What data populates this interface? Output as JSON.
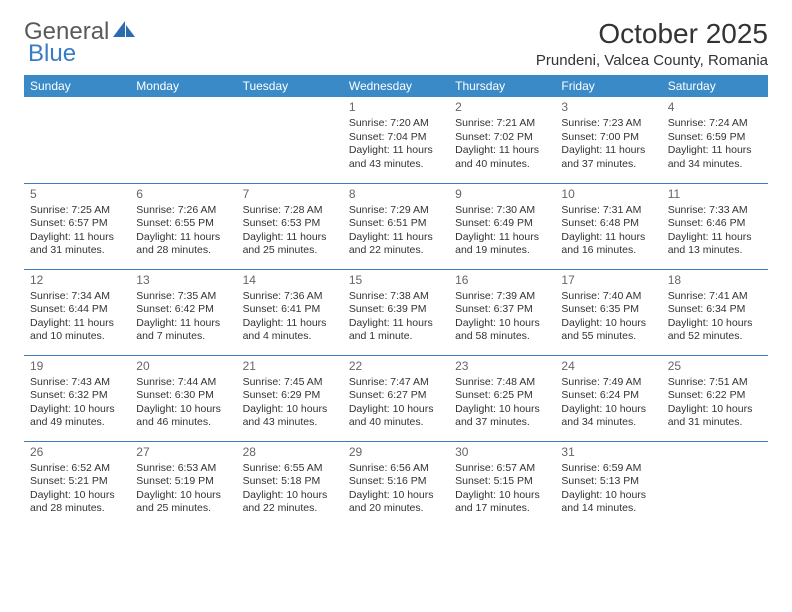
{
  "brand": {
    "part1": "General",
    "part2": "Blue"
  },
  "title": "October 2025",
  "location": "Prundeni, Valcea County, Romania",
  "weekdays": [
    "Sunday",
    "Monday",
    "Tuesday",
    "Wednesday",
    "Thursday",
    "Friday",
    "Saturday"
  ],
  "colors": {
    "header_bg": "#3a8ac8",
    "header_text": "#ffffff",
    "border": "#3a7cc4",
    "brand_gray": "#5a5a5a",
    "brand_blue": "#3a7cc4",
    "text": "#333333",
    "page_bg": "#ffffff"
  },
  "weeks": [
    [
      {
        "n": "",
        "sr": "",
        "ss": "",
        "dl": ""
      },
      {
        "n": "",
        "sr": "",
        "ss": "",
        "dl": ""
      },
      {
        "n": "",
        "sr": "",
        "ss": "",
        "dl": ""
      },
      {
        "n": "1",
        "sr": "Sunrise: 7:20 AM",
        "ss": "Sunset: 7:04 PM",
        "dl": "Daylight: 11 hours and 43 minutes."
      },
      {
        "n": "2",
        "sr": "Sunrise: 7:21 AM",
        "ss": "Sunset: 7:02 PM",
        "dl": "Daylight: 11 hours and 40 minutes."
      },
      {
        "n": "3",
        "sr": "Sunrise: 7:23 AM",
        "ss": "Sunset: 7:00 PM",
        "dl": "Daylight: 11 hours and 37 minutes."
      },
      {
        "n": "4",
        "sr": "Sunrise: 7:24 AM",
        "ss": "Sunset: 6:59 PM",
        "dl": "Daylight: 11 hours and 34 minutes."
      }
    ],
    [
      {
        "n": "5",
        "sr": "Sunrise: 7:25 AM",
        "ss": "Sunset: 6:57 PM",
        "dl": "Daylight: 11 hours and 31 minutes."
      },
      {
        "n": "6",
        "sr": "Sunrise: 7:26 AM",
        "ss": "Sunset: 6:55 PM",
        "dl": "Daylight: 11 hours and 28 minutes."
      },
      {
        "n": "7",
        "sr": "Sunrise: 7:28 AM",
        "ss": "Sunset: 6:53 PM",
        "dl": "Daylight: 11 hours and 25 minutes."
      },
      {
        "n": "8",
        "sr": "Sunrise: 7:29 AM",
        "ss": "Sunset: 6:51 PM",
        "dl": "Daylight: 11 hours and 22 minutes."
      },
      {
        "n": "9",
        "sr": "Sunrise: 7:30 AM",
        "ss": "Sunset: 6:49 PM",
        "dl": "Daylight: 11 hours and 19 minutes."
      },
      {
        "n": "10",
        "sr": "Sunrise: 7:31 AM",
        "ss": "Sunset: 6:48 PM",
        "dl": "Daylight: 11 hours and 16 minutes."
      },
      {
        "n": "11",
        "sr": "Sunrise: 7:33 AM",
        "ss": "Sunset: 6:46 PM",
        "dl": "Daylight: 11 hours and 13 minutes."
      }
    ],
    [
      {
        "n": "12",
        "sr": "Sunrise: 7:34 AM",
        "ss": "Sunset: 6:44 PM",
        "dl": "Daylight: 11 hours and 10 minutes."
      },
      {
        "n": "13",
        "sr": "Sunrise: 7:35 AM",
        "ss": "Sunset: 6:42 PM",
        "dl": "Daylight: 11 hours and 7 minutes."
      },
      {
        "n": "14",
        "sr": "Sunrise: 7:36 AM",
        "ss": "Sunset: 6:41 PM",
        "dl": "Daylight: 11 hours and 4 minutes."
      },
      {
        "n": "15",
        "sr": "Sunrise: 7:38 AM",
        "ss": "Sunset: 6:39 PM",
        "dl": "Daylight: 11 hours and 1 minute."
      },
      {
        "n": "16",
        "sr": "Sunrise: 7:39 AM",
        "ss": "Sunset: 6:37 PM",
        "dl": "Daylight: 10 hours and 58 minutes."
      },
      {
        "n": "17",
        "sr": "Sunrise: 7:40 AM",
        "ss": "Sunset: 6:35 PM",
        "dl": "Daylight: 10 hours and 55 minutes."
      },
      {
        "n": "18",
        "sr": "Sunrise: 7:41 AM",
        "ss": "Sunset: 6:34 PM",
        "dl": "Daylight: 10 hours and 52 minutes."
      }
    ],
    [
      {
        "n": "19",
        "sr": "Sunrise: 7:43 AM",
        "ss": "Sunset: 6:32 PM",
        "dl": "Daylight: 10 hours and 49 minutes."
      },
      {
        "n": "20",
        "sr": "Sunrise: 7:44 AM",
        "ss": "Sunset: 6:30 PM",
        "dl": "Daylight: 10 hours and 46 minutes."
      },
      {
        "n": "21",
        "sr": "Sunrise: 7:45 AM",
        "ss": "Sunset: 6:29 PM",
        "dl": "Daylight: 10 hours and 43 minutes."
      },
      {
        "n": "22",
        "sr": "Sunrise: 7:47 AM",
        "ss": "Sunset: 6:27 PM",
        "dl": "Daylight: 10 hours and 40 minutes."
      },
      {
        "n": "23",
        "sr": "Sunrise: 7:48 AM",
        "ss": "Sunset: 6:25 PM",
        "dl": "Daylight: 10 hours and 37 minutes."
      },
      {
        "n": "24",
        "sr": "Sunrise: 7:49 AM",
        "ss": "Sunset: 6:24 PM",
        "dl": "Daylight: 10 hours and 34 minutes."
      },
      {
        "n": "25",
        "sr": "Sunrise: 7:51 AM",
        "ss": "Sunset: 6:22 PM",
        "dl": "Daylight: 10 hours and 31 minutes."
      }
    ],
    [
      {
        "n": "26",
        "sr": "Sunrise: 6:52 AM",
        "ss": "Sunset: 5:21 PM",
        "dl": "Daylight: 10 hours and 28 minutes."
      },
      {
        "n": "27",
        "sr": "Sunrise: 6:53 AM",
        "ss": "Sunset: 5:19 PM",
        "dl": "Daylight: 10 hours and 25 minutes."
      },
      {
        "n": "28",
        "sr": "Sunrise: 6:55 AM",
        "ss": "Sunset: 5:18 PM",
        "dl": "Daylight: 10 hours and 22 minutes."
      },
      {
        "n": "29",
        "sr": "Sunrise: 6:56 AM",
        "ss": "Sunset: 5:16 PM",
        "dl": "Daylight: 10 hours and 20 minutes."
      },
      {
        "n": "30",
        "sr": "Sunrise: 6:57 AM",
        "ss": "Sunset: 5:15 PM",
        "dl": "Daylight: 10 hours and 17 minutes."
      },
      {
        "n": "31",
        "sr": "Sunrise: 6:59 AM",
        "ss": "Sunset: 5:13 PM",
        "dl": "Daylight: 10 hours and 14 minutes."
      },
      {
        "n": "",
        "sr": "",
        "ss": "",
        "dl": ""
      }
    ]
  ]
}
